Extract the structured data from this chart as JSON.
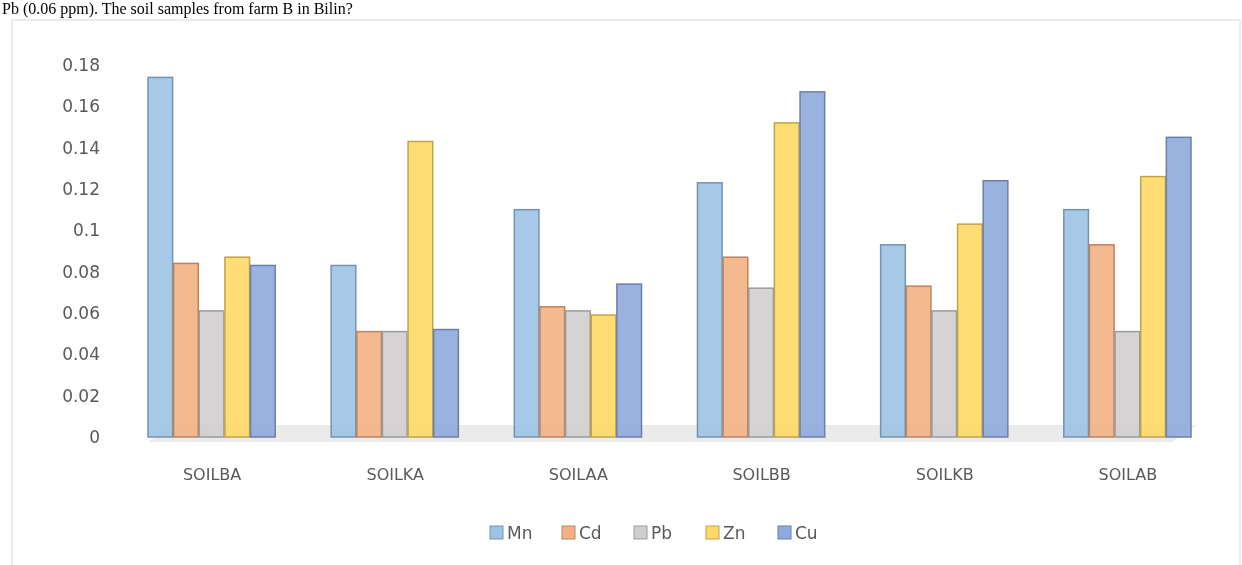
{
  "chart_data": {
    "type": "bar",
    "annotations": [
      "Pb (0.06 ppm). The soil samples from farm B in Bilin?"
    ],
    "categories": [
      "SOILBA",
      "SOILKA",
      "SOILAA",
      "SOILBB",
      "SOILKB",
      "SOILAB"
    ],
    "series": [
      {
        "name": "Mn",
        "color": "#9dc3e6",
        "values": [
          0.174,
          0.083,
          0.11,
          0.123,
          0.093,
          0.11
        ]
      },
      {
        "name": "Cd",
        "color": "#f4b183",
        "values": [
          0.084,
          0.051,
          0.063,
          0.087,
          0.073,
          0.093
        ]
      },
      {
        "name": "Pb",
        "color": "#d0cece",
        "values": [
          0.061,
          0.051,
          0.061,
          0.072,
          0.061,
          0.051
        ]
      },
      {
        "name": "Zn",
        "color": "#ffd966",
        "values": [
          0.087,
          0.143,
          0.059,
          0.152,
          0.103,
          0.126
        ]
      },
      {
        "name": "Cu",
        "color": "#8faadc",
        "values": [
          0.083,
          0.052,
          0.074,
          0.167,
          0.124,
          0.145
        ]
      }
    ],
    "ylim": [
      0,
      0.18
    ],
    "yticks": [
      0,
      0.02,
      0.04,
      0.06,
      0.08,
      0.1,
      0.12,
      0.14,
      0.16,
      0.18
    ],
    "grid": false,
    "legend": "bottom"
  }
}
